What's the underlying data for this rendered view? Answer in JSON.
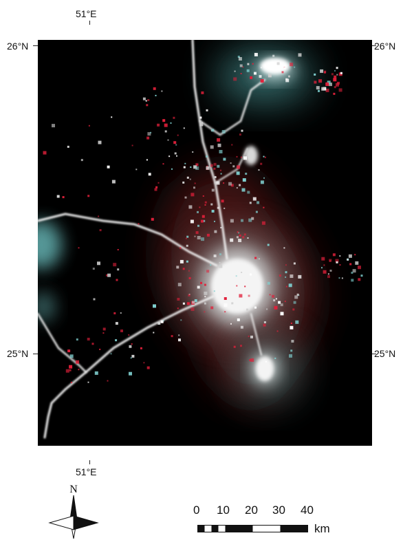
{
  "graticule": {
    "top_lon": "51°E",
    "bottom_lon": "51°E",
    "left_lat_top": "26°N",
    "left_lat_bottom": "25°N",
    "right_lat_top": "26°N",
    "right_lat_bottom": "25°N"
  },
  "north_arrow": {
    "label": "N"
  },
  "scale_bar": {
    "ticks": [
      "0",
      "10",
      "20",
      "30",
      "40"
    ],
    "unit": "km"
  },
  "colors": {
    "background": "#000000",
    "urban_light": "#f2f2f2",
    "glow_cyan": "#7fd0d0",
    "red_lights": "#e0203a"
  }
}
